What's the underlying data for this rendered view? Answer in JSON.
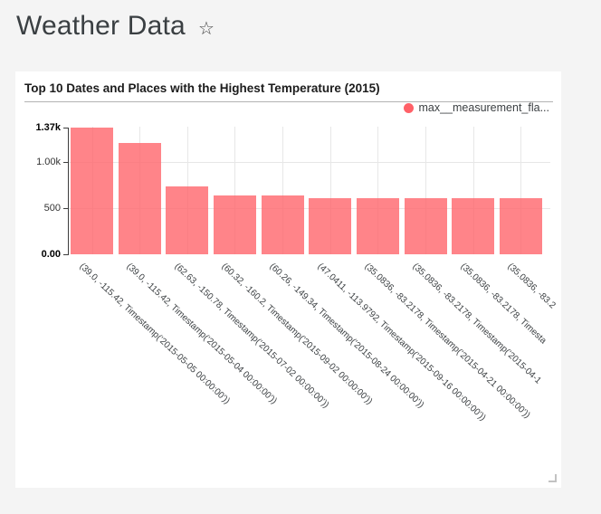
{
  "page": {
    "title": "Weather Data"
  },
  "icons": {
    "favorite_star": "☆",
    "resize_handle": "corner-drag"
  },
  "card": {
    "title": "Top 10 Dates and Places with the Highest Temperature (2015)"
  },
  "legend": {
    "label": "max__measurement_fla...",
    "color": "#ff6168"
  },
  "colors": {
    "page_background": "#f4f4f4",
    "card_background": "#ffffff",
    "bar": "#ff8389",
    "gridline": "#e7e7e7",
    "axis": "#3d3d3d"
  },
  "chart_data": {
    "type": "bar",
    "title": "Top 10 Dates and Places with the Highest Temperature (2015)",
    "series_name": "max__measurement_fla...",
    "legend_position": "top-right",
    "grid": true,
    "x_label_rotation_deg": 43,
    "categories": [
      "(39.0, -115.42, Timestamp('2015-05-05 00:00:00'))",
      "(39.0, -115.42, Timestamp('2015-05-04 00:00:00'))",
      "(62.63, -150.78, Timestamp('2015-07-02 00:00:00'))",
      "(60.32, -160.2, Timestamp('2015-09-02 00:00:00'))",
      "(60.26, -149.34, Timestamp('2015-08-24 00:00:00'))",
      "(47.0411, -113.9792, Timestamp('2015-09-16 00:00:00'))",
      "(35.0836, -83.2178, Timestamp('2015-04-21 00:00:00'))",
      "(35.0836, -83.2178, Timestamp('2015-04-1",
      "(35.0836, -83.2178, Timesta",
      "(35.0836, -83.2"
    ],
    "values": [
      1370,
      1205,
      735,
      640,
      635,
      610,
      605,
      610,
      605,
      605
    ],
    "ylim": [
      0,
      1370
    ],
    "yticks": [
      {
        "value": 0,
        "label": "0.00",
        "bold": true
      },
      {
        "value": 500,
        "label": "500",
        "bold": false
      },
      {
        "value": 1000,
        "label": "1.00k",
        "bold": false
      },
      {
        "value": 1370,
        "label": "1.37k",
        "bold": true
      }
    ],
    "xlabel": "",
    "ylabel": ""
  }
}
